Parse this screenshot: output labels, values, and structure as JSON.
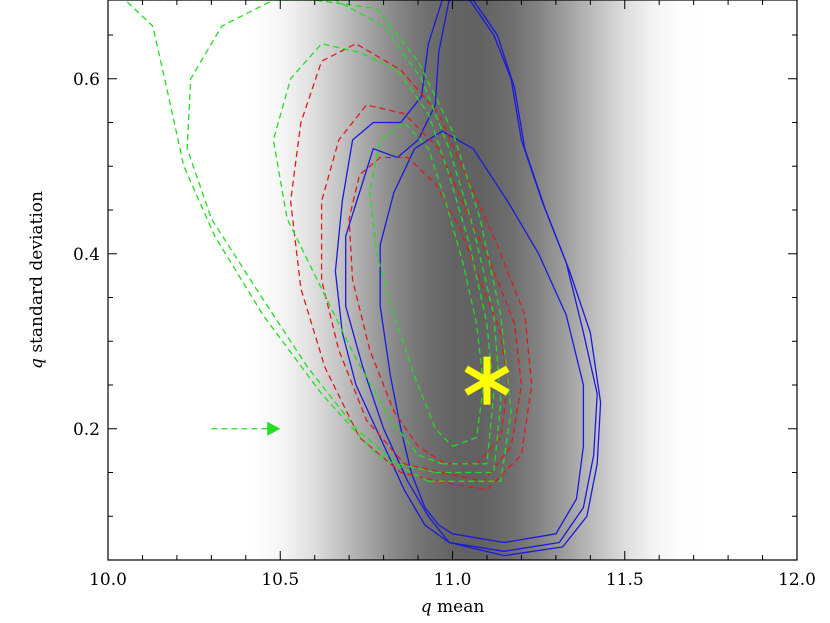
{
  "chart_data": {
    "type": "contour",
    "xlabel_var": "q",
    "xlabel_rest": " mean",
    "ylabel_var": "q",
    "ylabel_rest": " standard deviation",
    "xlim": [
      10.0,
      12.0
    ],
    "ylim": [
      0.05,
      0.69
    ],
    "x_ticks": [
      10.0,
      10.5,
      11.0,
      11.5,
      12.0
    ],
    "x_tick_labels": [
      "10.0",
      "10.5",
      "11.0",
      "11.5",
      "12.0"
    ],
    "y_ticks": [
      0.2,
      0.4,
      0.6
    ],
    "y_tick_labels": [
      "0.2",
      "0.4",
      "0.6"
    ],
    "background_band": {
      "center_x": 11.05,
      "half_width": 0.65,
      "peak_gray": 0.38
    },
    "series": [
      {
        "color": "#1a1adb",
        "linestyle": "solid",
        "contours": [
          [
            [
              11.0,
              0.08
            ],
            [
              11.15,
              0.07
            ],
            [
              11.3,
              0.08
            ],
            [
              11.36,
              0.12
            ],
            [
              11.38,
              0.18
            ],
            [
              11.38,
              0.25
            ],
            [
              11.33,
              0.33
            ],
            [
              11.25,
              0.4
            ],
            [
              11.16,
              0.46
            ],
            [
              11.06,
              0.52
            ],
            [
              10.97,
              0.54
            ],
            [
              10.89,
              0.52
            ],
            [
              10.83,
              0.47
            ],
            [
              10.79,
              0.41
            ],
            [
              10.79,
              0.34
            ],
            [
              10.82,
              0.26
            ],
            [
              10.85,
              0.2
            ],
            [
              10.88,
              0.15
            ],
            [
              10.92,
              0.11
            ],
            [
              10.96,
              0.09
            ],
            [
              11.0,
              0.08
            ]
          ],
          [
            [
              10.99,
              0.07
            ],
            [
              11.15,
              0.06
            ],
            [
              11.31,
              0.07
            ],
            [
              11.38,
              0.11
            ],
            [
              11.41,
              0.17
            ],
            [
              11.42,
              0.24
            ],
            [
              11.38,
              0.31
            ],
            [
              11.33,
              0.39
            ],
            [
              11.26,
              0.46
            ],
            [
              11.2,
              0.53
            ],
            [
              11.17,
              0.6
            ],
            [
              11.12,
              0.65
            ],
            [
              11.05,
              0.69
            ],
            [
              10.99,
              0.69
            ],
            [
              10.96,
              0.63
            ],
            [
              10.95,
              0.57
            ],
            [
              10.9,
              0.53
            ],
            [
              10.84,
              0.51
            ],
            [
              10.77,
              0.52
            ],
            [
              10.73,
              0.47
            ],
            [
              10.69,
              0.42
            ],
            [
              10.69,
              0.34
            ],
            [
              10.74,
              0.27
            ],
            [
              10.8,
              0.2
            ],
            [
              10.87,
              0.14
            ],
            [
              10.93,
              0.1
            ],
            [
              10.99,
              0.07
            ]
          ],
          [
            [
              10.99,
              0.07
            ],
            [
              11.15,
              0.055
            ],
            [
              11.32,
              0.065
            ],
            [
              11.39,
              0.1
            ],
            [
              11.42,
              0.16
            ],
            [
              11.43,
              0.23
            ],
            [
              11.4,
              0.31
            ],
            [
              11.34,
              0.38
            ],
            [
              11.27,
              0.45
            ],
            [
              11.21,
              0.52
            ],
            [
              11.18,
              0.59
            ],
            [
              11.13,
              0.65
            ],
            [
              11.06,
              0.69
            ],
            [
              10.97,
              0.69
            ],
            [
              10.93,
              0.64
            ],
            [
              10.91,
              0.58
            ],
            [
              10.85,
              0.55
            ],
            [
              10.77,
              0.55
            ],
            [
              10.71,
              0.53
            ],
            [
              10.68,
              0.46
            ],
            [
              10.66,
              0.38
            ],
            [
              10.68,
              0.31
            ],
            [
              10.72,
              0.25
            ],
            [
              10.79,
              0.19
            ],
            [
              10.86,
              0.13
            ],
            [
              10.92,
              0.09
            ],
            [
              10.99,
              0.07
            ]
          ]
        ]
      },
      {
        "color": "#e01a1a",
        "linestyle": "dashed",
        "contours": [
          [
            [
              10.98,
              0.16
            ],
            [
              11.07,
              0.16
            ],
            [
              11.14,
              0.19
            ],
            [
              11.16,
              0.25
            ],
            [
              11.14,
              0.31
            ],
            [
              11.08,
              0.37
            ],
            [
              11.02,
              0.43
            ],
            [
              10.95,
              0.48
            ],
            [
              10.87,
              0.51
            ],
            [
              10.79,
              0.51
            ],
            [
              10.73,
              0.49
            ],
            [
              10.7,
              0.44
            ],
            [
              10.71,
              0.37
            ],
            [
              10.76,
              0.29
            ],
            [
              10.83,
              0.22
            ],
            [
              10.9,
              0.18
            ],
            [
              10.98,
              0.16
            ]
          ],
          [
            [
              10.97,
              0.15
            ],
            [
              11.09,
              0.14
            ],
            [
              11.17,
              0.18
            ],
            [
              11.2,
              0.25
            ],
            [
              11.18,
              0.32
            ],
            [
              11.11,
              0.39
            ],
            [
              11.04,
              0.45
            ],
            [
              10.96,
              0.52
            ],
            [
              10.86,
              0.56
            ],
            [
              10.75,
              0.57
            ],
            [
              10.67,
              0.53
            ],
            [
              10.62,
              0.46
            ],
            [
              10.62,
              0.37
            ],
            [
              10.67,
              0.29
            ],
            [
              10.75,
              0.21
            ],
            [
              10.86,
              0.16
            ],
            [
              10.97,
              0.15
            ]
          ],
          [
            [
              10.96,
              0.14
            ],
            [
              11.1,
              0.13
            ],
            [
              11.2,
              0.17
            ],
            [
              11.23,
              0.25
            ],
            [
              11.21,
              0.33
            ],
            [
              11.13,
              0.41
            ],
            [
              11.05,
              0.48
            ],
            [
              10.96,
              0.56
            ],
            [
              10.85,
              0.61
            ],
            [
              10.72,
              0.64
            ],
            [
              10.62,
              0.62
            ],
            [
              10.56,
              0.55
            ],
            [
              10.53,
              0.46
            ],
            [
              10.56,
              0.36
            ],
            [
              10.63,
              0.27
            ],
            [
              10.73,
              0.19
            ],
            [
              10.85,
              0.15
            ],
            [
              10.96,
              0.14
            ]
          ]
        ]
      },
      {
        "color": "#22dd22",
        "linestyle": "dashed",
        "contours": [
          [
            [
              11.0,
              0.18
            ],
            [
              11.07,
              0.19
            ],
            [
              11.09,
              0.25
            ],
            [
              11.07,
              0.32
            ],
            [
              11.03,
              0.39
            ],
            [
              10.98,
              0.46
            ],
            [
              10.93,
              0.52
            ],
            [
              10.86,
              0.55
            ],
            [
              10.79,
              0.53
            ],
            [
              10.76,
              0.47
            ],
            [
              10.78,
              0.4
            ],
            [
              10.83,
              0.33
            ],
            [
              10.89,
              0.26
            ],
            [
              10.95,
              0.2
            ],
            [
              11.0,
              0.18
            ]
          ],
          [
            [
              10.97,
              0.16
            ],
            [
              11.1,
              0.16
            ],
            [
              11.12,
              0.24
            ],
            [
              11.1,
              0.32
            ],
            [
              11.05,
              0.41
            ],
            [
              10.99,
              0.49
            ],
            [
              10.93,
              0.56
            ],
            [
              10.84,
              0.61
            ],
            [
              10.73,
              0.63
            ],
            [
              10.62,
              0.64
            ],
            [
              10.53,
              0.6
            ],
            [
              10.48,
              0.53
            ],
            [
              10.52,
              0.44
            ],
            [
              10.62,
              0.36
            ],
            [
              10.72,
              0.28
            ],
            [
              10.82,
              0.21
            ],
            [
              10.9,
              0.17
            ],
            [
              10.97,
              0.16
            ]
          ],
          [
            [
              10.95,
              0.15
            ],
            [
              11.12,
              0.15
            ],
            [
              11.14,
              0.23
            ],
            [
              11.12,
              0.33
            ],
            [
              11.06,
              0.43
            ],
            [
              10.99,
              0.52
            ],
            [
              10.91,
              0.6
            ],
            [
              10.8,
              0.66
            ],
            [
              10.66,
              0.69
            ],
            [
              10.48,
              0.69
            ],
            [
              10.33,
              0.66
            ],
            [
              10.24,
              0.6
            ],
            [
              10.23,
              0.52
            ],
            [
              10.3,
              0.44
            ],
            [
              10.43,
              0.36
            ],
            [
              10.58,
              0.27
            ],
            [
              10.72,
              0.2
            ],
            [
              10.84,
              0.16
            ],
            [
              10.95,
              0.15
            ]
          ],
          [
            [
              10.93,
              0.14
            ],
            [
              11.14,
              0.14
            ],
            [
              11.17,
              0.22
            ],
            [
              11.14,
              0.33
            ],
            [
              11.08,
              0.44
            ],
            [
              11.0,
              0.54
            ],
            [
              10.9,
              0.62
            ],
            [
              10.78,
              0.68
            ],
            [
              10.6,
              0.69
            ],
            [
              10.3,
              0.69
            ],
            [
              10.05,
              0.69
            ],
            [
              10.13,
              0.66
            ],
            [
              10.17,
              0.59
            ],
            [
              10.22,
              0.5
            ],
            [
              10.31,
              0.42
            ],
            [
              10.45,
              0.33
            ],
            [
              10.62,
              0.24
            ],
            [
              10.78,
              0.17
            ],
            [
              10.93,
              0.14
            ]
          ]
        ]
      }
    ],
    "marker": {
      "x": 11.1,
      "y": 0.255,
      "symbol": "asterisk",
      "color": "#ffff00"
    },
    "arrow": {
      "x0": 10.3,
      "x1": 10.5,
      "y": 0.2,
      "color": "#22dd22",
      "linestyle": "dashed"
    }
  }
}
